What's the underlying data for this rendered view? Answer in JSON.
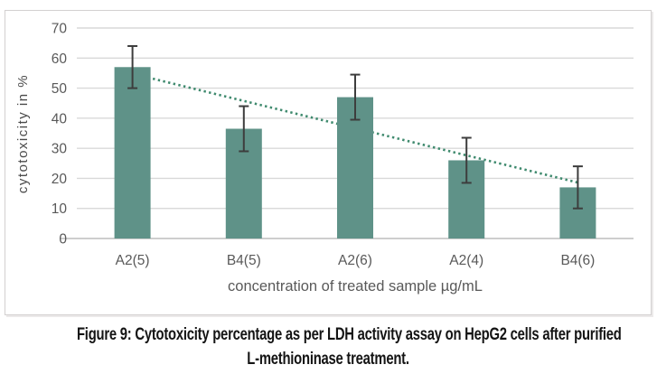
{
  "figure": {
    "caption_line1": "Figure 9: Cytotoxicity percentage as per LDH activity assay on HepG2 cells after purified",
    "caption_line2": "L-methioninase treatment."
  },
  "colors": {
    "bar": "#5f9288",
    "trendline": "#3f8a6e",
    "gridline": "#d9d9d9",
    "axis_line": "#bdbdbd",
    "error_bar": "#3d3d3d",
    "tick_label": "#595959",
    "axis_title": "#4a4a4a",
    "chart_border": "#d3d0d0",
    "caption_text": "#141414"
  },
  "chart_data": {
    "type": "bar",
    "categories": [
      "A2(5)",
      "B4(5)",
      "A2(6)",
      "A2(4)",
      "B4(6)"
    ],
    "values": [
      57,
      36.5,
      47,
      26,
      17
    ],
    "error_bars": [
      7,
      7.5,
      7.5,
      7.5,
      7
    ],
    "trendline": {
      "type": "linear",
      "style": "dotted",
      "start_value": 54.8,
      "end_value": 18.6
    },
    "title": "",
    "xlabel": "concentration of treated sample µg/mL",
    "ylabel": "cytotoxicity in %",
    "ylim": [
      0,
      70
    ],
    "yticks": [
      0,
      10,
      20,
      30,
      40,
      50,
      60,
      70
    ],
    "grid": true,
    "legend": "none"
  }
}
